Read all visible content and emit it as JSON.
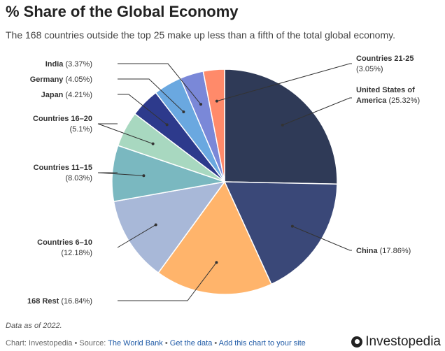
{
  "chart_data": {
    "type": "pie",
    "title": "% Share of the Global Economy",
    "subtitle": "The 168 countries outside the top 25 make up less than a fifth of the total global economy.",
    "slices": [
      {
        "name": "United States of America",
        "value": 25.32,
        "value_label": "(25.32%)",
        "color": "#2f3a57"
      },
      {
        "name": "China",
        "value": 17.86,
        "value_label": "(17.86%)",
        "color": "#3a4878"
      },
      {
        "name": "168 Rest",
        "value": 16.84,
        "value_label": "(16.84%)",
        "color": "#ffb46b"
      },
      {
        "name": "Countries 6–10",
        "value": 12.18,
        "value_label": "(12.18%)",
        "color": "#a8b8d8"
      },
      {
        "name": "Countries 11–15",
        "value": 8.03,
        "value_label": "(8.03%)",
        "color": "#7ab8c0"
      },
      {
        "name": "Countries 16–20",
        "value": 5.1,
        "value_label": "(5.1%)",
        "color": "#a8d8c0"
      },
      {
        "name": "Japan",
        "value": 4.21,
        "value_label": "(4.21%)",
        "color": "#2d3a8c"
      },
      {
        "name": "Germany",
        "value": 4.05,
        "value_label": "(4.05%)",
        "color": "#6aa8e0"
      },
      {
        "name": "India",
        "value": 3.37,
        "value_label": "(3.37%)",
        "color": "#7a88d8"
      },
      {
        "name": "Countries 21-25",
        "value": 3.05,
        "value_label": "(3.05%)",
        "color": "#ff8a6a"
      }
    ]
  },
  "note": "Data as of 2022.",
  "footer": {
    "prefix": "Chart: Investopedia • Source: ",
    "source": "The World Bank",
    "sep1": " • ",
    "get_data": "Get the data",
    "sep2": " • ",
    "add_chart": "Add this chart to your site"
  },
  "brand": "Investopedia"
}
